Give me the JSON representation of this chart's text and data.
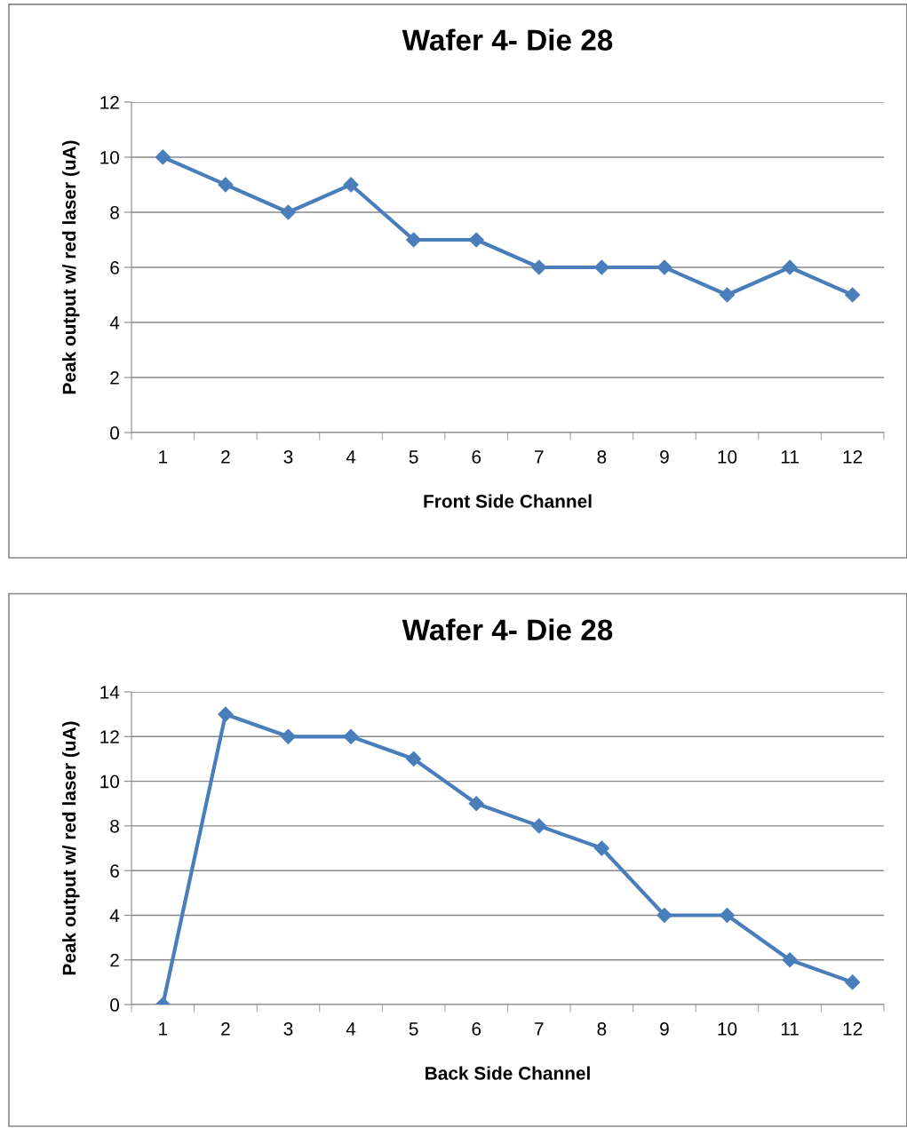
{
  "chart_data": [
    {
      "type": "line",
      "title": "Wafer 4- Die 28",
      "xlabel": "Front Side Channel",
      "ylabel": "Peak output w/ red laser (uA)",
      "categories": [
        "1",
        "2",
        "3",
        "4",
        "5",
        "6",
        "7",
        "8",
        "9",
        "10",
        "11",
        "12"
      ],
      "series": [
        {
          "color": "#4a7ebb",
          "values": [
            10,
            9,
            8,
            9,
            7,
            7,
            6,
            6,
            6,
            5,
            6,
            5
          ]
        }
      ],
      "ylim": [
        0,
        12
      ],
      "yticks": [
        0,
        2,
        4,
        6,
        8,
        10,
        12
      ],
      "grid": "y",
      "marker": "diamond",
      "line_style": "solid",
      "legend": false
    },
    {
      "type": "line",
      "title": "Wafer 4- Die 28",
      "xlabel": "Back Side Channel",
      "ylabel": "Peak output w/ red laser (uA)",
      "categories": [
        "1",
        "2",
        "3",
        "4",
        "5",
        "6",
        "7",
        "8",
        "9",
        "10",
        "11",
        "12"
      ],
      "series": [
        {
          "color": "#4a7ebb",
          "values": [
            0,
            13,
            12,
            12,
            11,
            9,
            8,
            7,
            4,
            4,
            2,
            1
          ]
        }
      ],
      "ylim": [
        0,
        14
      ],
      "yticks": [
        0,
        2,
        4,
        6,
        8,
        10,
        12,
        14
      ],
      "grid": "y",
      "marker": "diamond",
      "line_style": "solid",
      "legend": false
    }
  ]
}
